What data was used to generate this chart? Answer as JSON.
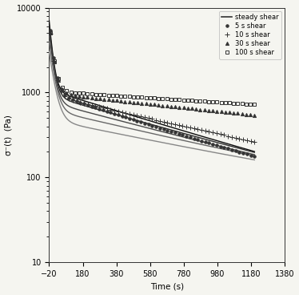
{
  "title": "",
  "xlabel": "Time (s)",
  "ylabel": "σ⁻(t)  (Pa)",
  "xlim": [
    -20,
    1380
  ],
  "ylim": [
    10,
    10000
  ],
  "xticks": [
    -20,
    180,
    380,
    580,
    780,
    980,
    1180,
    1380
  ],
  "background_color": "#f5f5f0",
  "legend_entries": [
    "steady shear",
    "5 s shear",
    "10 s shear",
    "30 s shear",
    "100 s shear"
  ],
  "steady_lines": [
    {
      "peak": 7000,
      "tau1": 18,
      "tau2": 700,
      "floor": 18
    },
    {
      "peak": 6000,
      "tau1": 20,
      "tau2": 750,
      "floor": 20
    },
    {
      "peak": 5000,
      "tau1": 22,
      "tau2": 800,
      "floor": 22
    },
    {
      "peak": 4000,
      "tau1": 25,
      "tau2": 900,
      "floor": 25
    },
    {
      "peak": 3000,
      "tau1": 28,
      "tau2": 1000,
      "floor": 28
    }
  ],
  "scatter_series": [
    {
      "label": "5 s shear",
      "marker": "o",
      "markersize": 2.5,
      "peak": 6500,
      "tau1": 22,
      "tau2": 650,
      "floor": 28,
      "t_start": -15,
      "t_end": 1200,
      "n_pts": 55,
      "open": false
    },
    {
      "label": "10 s shear",
      "marker": "+",
      "markersize": 4.5,
      "peak": 6000,
      "tau1": 22,
      "tau2": 900,
      "floor": 32,
      "t_start": -15,
      "t_end": 1200,
      "n_pts": 55,
      "open": false
    },
    {
      "label": "30 s shear",
      "marker": "^",
      "markersize": 3,
      "peak": 6000,
      "tau1": 22,
      "tau2": 1800,
      "floor": 85,
      "t_start": -15,
      "t_end": 1200,
      "n_pts": 50,
      "open": false
    },
    {
      "label": "100 s shear",
      "marker": "s",
      "markersize": 3,
      "peak": 6000,
      "tau1": 22,
      "tau2": 2800,
      "floor": 140,
      "t_start": -15,
      "t_end": 1200,
      "n_pts": 50,
      "open": true
    }
  ]
}
